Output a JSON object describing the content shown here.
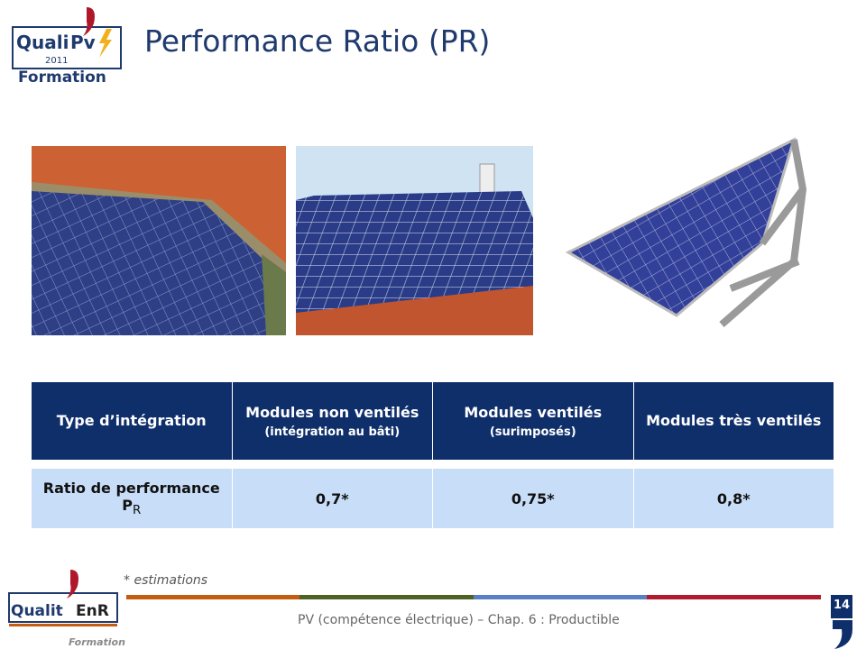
{
  "header": {
    "title": "Performance Ratio (PR)",
    "logo": {
      "brand": "Quali",
      "mark": "Pv",
      "year": "2011",
      "sub": "Formation"
    }
  },
  "table": {
    "header": [
      {
        "text": "Type d’intégration"
      },
      {
        "text": "Modules non ventilés",
        "note": "(intégration au bâti)"
      },
      {
        "text": "Modules ventilés",
        "note": "(surimposés)"
      },
      {
        "text": "Modules très ventilés"
      }
    ],
    "rows": [
      {
        "label": "Ratio de performance P",
        "label_sub": "R",
        "values": [
          "0,7*",
          "0,75*",
          "0,8*"
        ]
      }
    ]
  },
  "footnote": "* estimations",
  "footer": {
    "text": "PV (compétence électrique) – Chap. 6 : Productible",
    "page": "14",
    "logo": {
      "brand": "Qualit",
      "mark": "EnR",
      "sub": "Formation"
    }
  }
}
